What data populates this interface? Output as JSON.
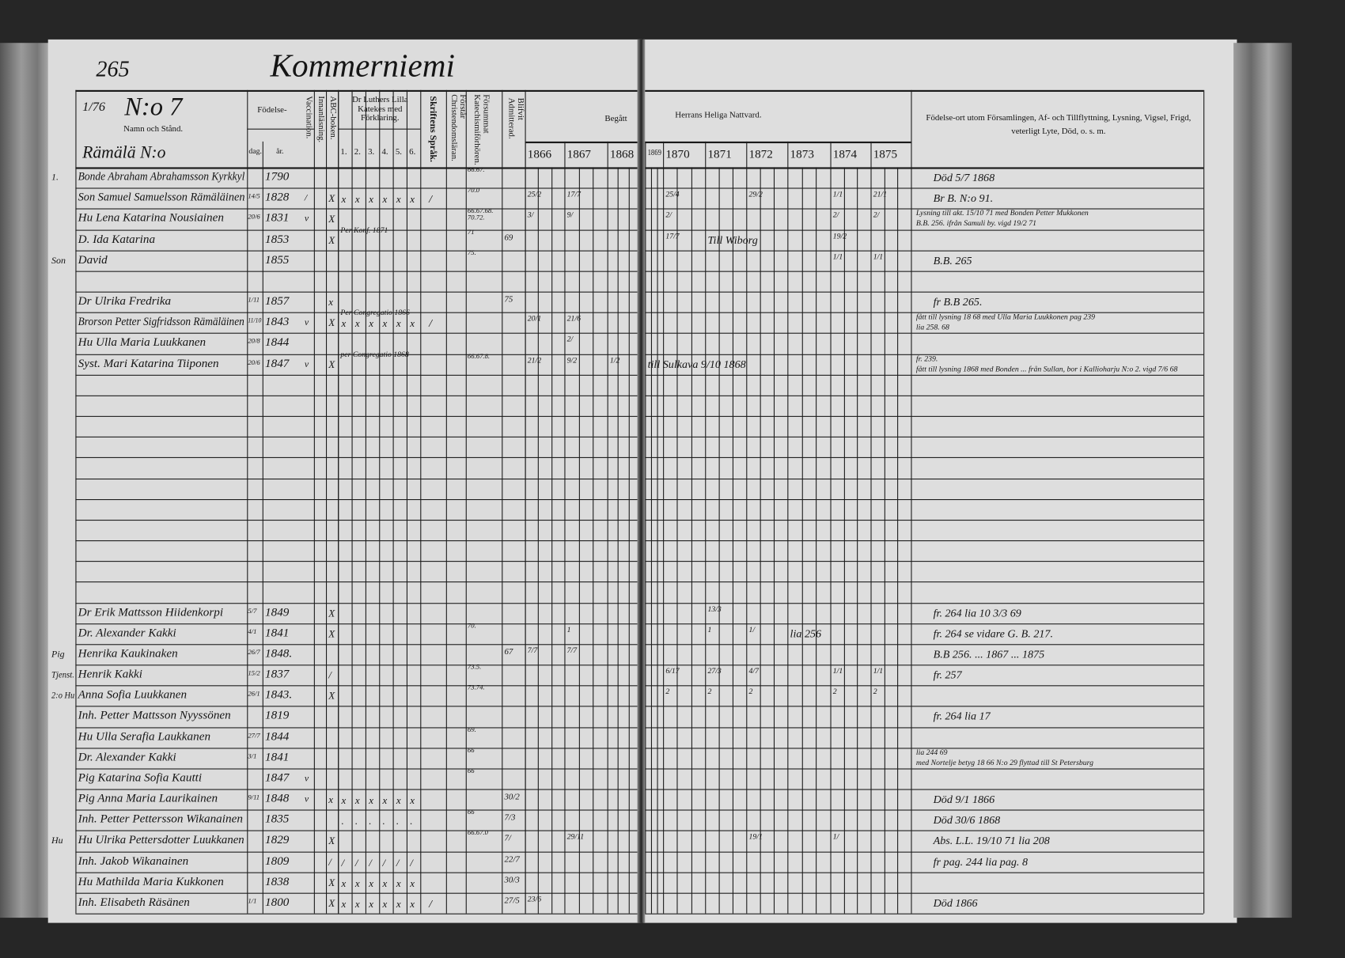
{
  "page_number": "265",
  "title": "Kommerniemi",
  "header": {
    "fraction": "1/76",
    "number": "N:o 7",
    "name_col": "Namn och Stånd.",
    "village": "Rämälä N:o",
    "fodelse": "Födelse-",
    "dag": "dag.",
    "ar": "år.",
    "vaccination": "Vaccination.",
    "innanlasning": "Innanläsning.",
    "abc": "ABC-boken.",
    "katekes": "Dr Luthers Lilla Katekes med Förklaring.",
    "katekes_cols": [
      "1.",
      "2.",
      "3.",
      "4.",
      "5.",
      "6."
    ],
    "skriftens": "Skriftens Språk.",
    "forstar": "Förstår Christendomsläran.",
    "forsummat": "Försummat Katechismiförhören.",
    "blifvit": "Blifvit Admitterad.",
    "begatt": "Begått",
    "nattvard": "Herrans Heliga Nattvard.",
    "years": [
      "1866",
      "1867",
      "1868",
      "1869",
      "1870",
      "1871",
      "1872",
      "1873",
      "1874",
      "1875"
    ],
    "notes_col": "Födelse-ort utom Församlingen, Af- och Tillflyttning, Lysning, Vigsel, Frigd, veterligt Lyte, Död, o. s. m."
  },
  "rows": [
    {
      "left": "1.",
      "name": "Bonde Abraham Abrahamsson Kyrkkyl",
      "ar": "1790",
      "forsummat": "66.67.",
      "notes": [
        "Död 5/7 1868"
      ]
    },
    {
      "name": "Son Samuel Samuelsson Rämäläinen",
      "dag": "14/5",
      "ar": "1828",
      "vacc": "/",
      "abc": "X",
      "kat": [
        "x",
        "x",
        "x",
        "x",
        "x",
        "x"
      ],
      "skrift": "/",
      "forsummat": "70.0",
      "communion": {
        "1866": "25/2",
        "1867": "17/7",
        "1870": "25/4",
        "1872": "29/2",
        "1874": "1/1",
        "1875": "21/1"
      },
      "notes": [
        "Br B. N:o 91."
      ]
    },
    {
      "name": "Hu Lena Katarina Nousiainen",
      "dag": "20/6",
      "ar": "1831",
      "vacc": "v",
      "abc": "X",
      "forsummat": "66.67.68. 70.72.",
      "communion": {
        "1866": "3/",
        "1867": "9/",
        "1870": "2/",
        "1874": "2/",
        "1875": "2/"
      },
      "notes": [
        "Lysning till akt. 15/10 71 med Bonden Petter Mukkonen",
        "B.B. 256. ifrån Samuli by. vigd 19/2 71"
      ]
    },
    {
      "name": "D. Ida Katarina",
      "ar": "1853",
      "abc": "X",
      "kat_note": "Per Konf. 1871",
      "forsummat": "71",
      "blifvit": "69",
      "communion": {
        "1870": "17/7",
        "1874": "19/2"
      },
      "mid_note": "Till Wiborg"
    },
    {
      "left": "Son",
      "name": "David",
      "ar": "1855",
      "forsummat": "75.",
      "communion": {
        "1874": "1/1",
        "1875": "1/1"
      },
      "notes": [
        "B.B. 265"
      ]
    },
    {
      "name": "Dr Ulrika Fredrika",
      "dag": "1/11",
      "ar": "1857",
      "abc": "x",
      "blifvit": "75",
      "notes": [
        "fr B.B 265."
      ]
    },
    {
      "name": "Brorson Petter Sigfridsson Rämäläinen",
      "dag": "11/10",
      "ar": "1843",
      "vacc": "v",
      "abc": "X",
      "kat_note": "Per Congregatio 1866",
      "kat": [
        "x",
        "x",
        "x",
        "x",
        "x",
        "x"
      ],
      "skrift": "/",
      "communion": {
        "1866": "20/1",
        "1867": "21/6"
      },
      "notes": [
        "fått till lysning 18 68 med Ulla Maria Luukkonen pag 239",
        "lia 258. 68"
      ]
    },
    {
      "name": "Hu Ulla Maria Luukkanen",
      "dag": "20/8",
      "ar": "1844",
      "communion": {
        "1867": "2/"
      }
    },
    {
      "name": "Syst. Mari Katarina Tiiponen",
      "dag": "20/6",
      "ar": "1847",
      "vacc": "v",
      "abc": "X",
      "kat_note": "per Congregatio 1868",
      "forsummat": "66.67.8.",
      "communion": {
        "1866": "21/2",
        "1867": "9/2",
        "1868": "1/2"
      },
      "mid_note": "till Sulkava 9/10 1868",
      "notes": [
        "fr. 239.",
        "fått till lysning 1868 med Bonden ... från Sullan, bor i Kallioharju N:o 2. vigd 7/6 68"
      ]
    },
    {
      "name": "Dr Erik Mattsson Hiidenkorpi",
      "dag": "5/7",
      "ar": "1849",
      "abc": "X",
      "communion": {
        "1871": "13/3"
      },
      "notes": [
        "fr. 264 lia 10 3/3 69"
      ]
    },
    {
      "name": "Dr. Alexander Kakki",
      "dag": "4/1",
      "ar": "1841",
      "abc": "X",
      "forsummat": "70.",
      "communion": {
        "1867": "1",
        "1871": "1",
        "1872": "1/"
      },
      "mid_note": "lia 256",
      "notes": [
        "fr. 264 se vidare G. B. 217."
      ]
    },
    {
      "left": "Pig",
      "name": "Henrika Kaukinaken",
      "dag": "26/7",
      "ar": "1848.",
      "blifvit": "67",
      "communion": {
        "1866": "7/7",
        "1867": "7/7"
      },
      "notes": [
        "B.B 256. ... 1867 ... 1875"
      ]
    },
    {
      "left": "Tjenst.",
      "name": "Henrik Kakki",
      "dag": "15/2",
      "ar": "1837",
      "abc": "/",
      "forsummat": "73.5.",
      "communion": {
        "1870": "6/17",
        "1871": "27/3",
        "1872": "4/7",
        "1874": "1/1",
        "1875": "1/1"
      },
      "notes": [
        "fr. 257"
      ]
    },
    {
      "left": "2:o Hu",
      "name": "Anna Sofia Luukkanen",
      "dag": "26/1",
      "ar": "1843.",
      "abc": "X",
      "forsummat": "73.74.",
      "communion": {
        "1870": "2",
        "1871": "2",
        "1872": "2",
        "1874": "2",
        "1875": "2"
      }
    },
    {
      "name": "Inh. Petter Mattsson Nyyssönen",
      "ar": "1819",
      "notes": [
        "fr. 264 lia 17"
      ]
    },
    {
      "name": "Hu Ulla Serafia Laukkanen",
      "dag": "27/7",
      "ar": "1844",
      "forsummat": "69."
    },
    {
      "name": "Dr. Alexander Kakki",
      "dag": "3/1",
      "ar": "1841",
      "forsummat": "66",
      "notes": [
        "lia 244 69",
        "med Nortelje betyg 18 66 N:o 29 flyttad till St Petersburg"
      ]
    },
    {
      "name": "Pig Katarina Sofia Kautti",
      "ar": "1847",
      "vacc": "v",
      "forsummat": "66"
    },
    {
      "name": "Pig Anna Maria Laurikainen",
      "dag": "9/11",
      "ar": "1848",
      "vacc": "v",
      "abc": "x",
      "kat": [
        "x",
        "x",
        "x",
        "x",
        "x",
        "x"
      ],
      "blifvit": "30/2",
      "notes": [
        "Död 9/1 1866"
      ]
    },
    {
      "name": "Inh. Petter Pettersson Wikanainen",
      "ar": "1835",
      "kat": [
        ".",
        ".",
        ".",
        ".",
        ".",
        "."
      ],
      "forsummat": "66",
      "blifvit": "7/3",
      "notes": [
        "Död 30/6 1868"
      ]
    },
    {
      "left": "Hu",
      "name": "Hu Ulrika Pettersdotter Luukkanen",
      "ar": "1829",
      "abc": "X",
      "forsummat": "66.67.0",
      "blifvit": "7/",
      "communion": {
        "1867": "29/11",
        "1872": "19/1",
        "1874": "1/"
      },
      "notes": [
        "Abs. L.L. 19/10 71 lia 208"
      ]
    },
    {
      "name": "Inh. Jakob Wikanainen",
      "ar": "1809",
      "abc": "/",
      "kat": [
        "/",
        "/",
        "/",
        "/",
        "/",
        "/"
      ],
      "blifvit": "22/7",
      "notes": [
        "fr pag. 244 lia pag. 8"
      ]
    },
    {
      "name": "Hu Mathilda Maria Kukkonen",
      "ar": "1838",
      "abc": "X",
      "kat": [
        "x",
        "x",
        "x",
        "x",
        "x",
        "x"
      ],
      "blifvit": "30/3"
    },
    {
      "name": "Inh. Elisabeth Räsänen",
      "dag": "1/1",
      "ar": "1800",
      "abc": "X",
      "kat": [
        "x",
        "x",
        "x",
        "x",
        "x",
        "x"
      ],
      "skrift": "/",
      "blifvit": "27/5",
      "communion": {
        "1866": "23/6"
      },
      "notes": [
        "Död 1866"
      ]
    }
  ]
}
